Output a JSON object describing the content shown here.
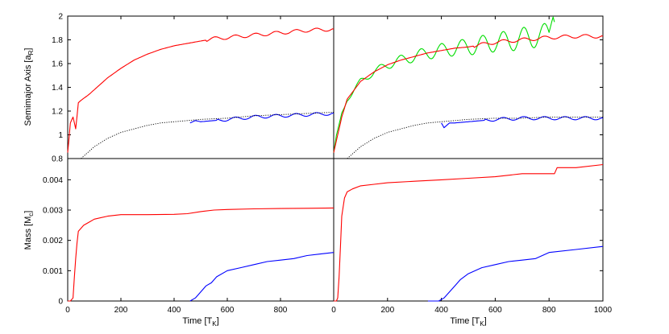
{
  "chart_data": [
    {
      "type": "line",
      "panel": "top-left",
      "xlabel": "",
      "ylabel": "Semimajor Axis [a_R]",
      "ylabel_main": "Semimajor Axis [a",
      "ylabel_sub": "R",
      "ylabel_end": "]",
      "xlim": [
        0,
        1000
      ],
      "ylim": [
        0.8,
        2.0
      ],
      "yticks": [
        "0.8",
        "1",
        "1.2",
        "1.4",
        "1.6",
        "1.8",
        "2"
      ],
      "series": [
        {
          "color": "#ff0000",
          "x": [
            0,
            10,
            20,
            30,
            40,
            50,
            80,
            100,
            150,
            200,
            250,
            300,
            350,
            400,
            450,
            500,
            550,
            600,
            700,
            800,
            900,
            1000
          ],
          "y": [
            0.85,
            1.1,
            1.15,
            1.05,
            1.27,
            1.29,
            1.34,
            1.38,
            1.48,
            1.56,
            1.63,
            1.68,
            1.72,
            1.75,
            1.77,
            1.79,
            1.81,
            1.82,
            1.84,
            1.86,
            1.88,
            1.89
          ]
        },
        {
          "color": "#0000ff",
          "x": [
            460,
            480,
            500,
            550,
            600,
            650,
            700,
            800,
            900,
            1000
          ],
          "y": [
            1.1,
            1.12,
            1.11,
            1.12,
            1.13,
            1.14,
            1.15,
            1.16,
            1.17,
            1.18
          ]
        },
        {
          "color": "#000000",
          "dash": true,
          "x": [
            50,
            100,
            150,
            200,
            250,
            300,
            350,
            400,
            450,
            500,
            600,
            700,
            800,
            900,
            1000
          ],
          "y": [
            0.8,
            0.9,
            0.97,
            1.02,
            1.05,
            1.08,
            1.1,
            1.11,
            1.12,
            1.13,
            1.14,
            1.16,
            1.17,
            1.18,
            1.19
          ]
        }
      ]
    },
    {
      "type": "line",
      "panel": "top-right",
      "xlabel": "",
      "ylabel": "",
      "xlim": [
        0,
        1000
      ],
      "ylim": [
        0.8,
        2.0
      ],
      "series": [
        {
          "color": "#00dd00",
          "x": [
            0,
            10,
            20,
            30,
            50,
            100,
            150,
            200,
            250,
            300,
            350,
            400,
            450,
            500,
            550,
            600,
            650,
            700,
            750,
            800,
            820
          ],
          "y": [
            0.85,
            1.0,
            1.1,
            1.2,
            1.3,
            1.45,
            1.53,
            1.59,
            1.63,
            1.66,
            1.69,
            1.71,
            1.73,
            1.74,
            1.76,
            1.78,
            1.79,
            1.81,
            1.83,
            1.85,
            1.95
          ]
        },
        {
          "color": "#ff0000",
          "x": [
            0,
            10,
            20,
            30,
            50,
            100,
            150,
            200,
            250,
            300,
            350,
            400,
            450,
            500,
            550,
            600,
            650,
            700,
            800,
            900,
            1000
          ],
          "y": [
            0.85,
            0.95,
            1.05,
            1.15,
            1.3,
            1.45,
            1.53,
            1.59,
            1.63,
            1.66,
            1.69,
            1.71,
            1.73,
            1.74,
            1.76,
            1.78,
            1.79,
            1.8,
            1.82,
            1.83,
            1.83
          ]
        },
        {
          "color": "#0000ff",
          "x": [
            400,
            410,
            430,
            450,
            500,
            550,
            600,
            700,
            800,
            900,
            1000
          ],
          "y": [
            1.1,
            1.06,
            1.1,
            1.1,
            1.11,
            1.12,
            1.13,
            1.14,
            1.14,
            1.14,
            1.14
          ]
        },
        {
          "color": "#000000",
          "dash": true,
          "x": [
            50,
            100,
            150,
            200,
            250,
            300,
            350,
            400,
            450,
            500,
            600,
            700,
            800,
            900,
            1000
          ],
          "y": [
            0.8,
            0.9,
            0.97,
            1.02,
            1.05,
            1.08,
            1.1,
            1.11,
            1.12,
            1.13,
            1.14,
            1.14,
            1.15,
            1.15,
            1.15
          ]
        }
      ]
    },
    {
      "type": "line",
      "panel": "bottom-left",
      "xlabel": "Time [T_K]",
      "ylabel": "Mass [M_c]",
      "ylabel_main": "Mass [M",
      "ylabel_sub": "c",
      "ylabel_end": "]",
      "xlabel_main": "Time [T",
      "xlabel_sub": "K",
      "xlabel_end": "]",
      "xlim": [
        0,
        1000
      ],
      "ylim": [
        0,
        0.0047
      ],
      "xticks": [
        "0",
        "200",
        "400",
        "600",
        "800"
      ],
      "yticks": [
        "0",
        "0.001",
        "0.002",
        "0.003",
        "0.004"
      ],
      "series": [
        {
          "color": "#ff0000",
          "x": [
            0,
            10,
            20,
            25,
            30,
            35,
            40,
            50,
            60,
            80,
            100,
            150,
            200,
            300,
            400,
            450,
            500,
            550,
            600,
            700,
            800,
            900,
            1000
          ],
          "y": [
            0,
            0,
            0.0001,
            0.0008,
            0.0014,
            0.0019,
            0.0023,
            0.0024,
            0.0025,
            0.0026,
            0.0027,
            0.0028,
            0.00285,
            0.00285,
            0.00286,
            0.00288,
            0.00295,
            0.003,
            0.00302,
            0.00304,
            0.00305,
            0.00306,
            0.00307
          ]
        },
        {
          "color": "#0000ff",
          "x": [
            460,
            480,
            500,
            520,
            540,
            560,
            600,
            650,
            700,
            750,
            800,
            850,
            900,
            950,
            1000
          ],
          "y": [
            0,
            0.0001,
            0.0003,
            0.0005,
            0.0006,
            0.0008,
            0.001,
            0.0011,
            0.0012,
            0.0013,
            0.00135,
            0.0014,
            0.0015,
            0.00155,
            0.0016
          ]
        }
      ]
    },
    {
      "type": "line",
      "panel": "bottom-right",
      "xlabel": "Time [T_K]",
      "xlabel_main": "Time [T",
      "xlabel_sub": "K",
      "xlabel_end": "]",
      "ylabel": "",
      "xlim": [
        0,
        1000
      ],
      "ylim": [
        0,
        0.0047
      ],
      "xticks": [
        "0",
        "200",
        "400",
        "600",
        "800",
        "1000"
      ],
      "series": [
        {
          "color": "#ff0000",
          "x": [
            0,
            10,
            15,
            20,
            25,
            30,
            40,
            50,
            70,
            100,
            150,
            200,
            300,
            400,
            500,
            600,
            700,
            820,
            830,
            900,
            1000
          ],
          "y": [
            0,
            0,
            0.0001,
            0.0008,
            0.0018,
            0.0028,
            0.0034,
            0.0036,
            0.0037,
            0.0038,
            0.00385,
            0.0039,
            0.00395,
            0.004,
            0.00405,
            0.0041,
            0.0042,
            0.0042,
            0.0044,
            0.0044,
            0.0045
          ]
        },
        {
          "color": "#0000ff",
          "x": [
            350,
            390,
            410,
            430,
            450,
            470,
            500,
            550,
            600,
            650,
            700,
            750,
            800,
            900,
            1000
          ],
          "y": [
            0,
            0,
            0.0001,
            0.0003,
            0.0005,
            0.0007,
            0.0009,
            0.0011,
            0.0012,
            0.0013,
            0.00135,
            0.0014,
            0.0016,
            0.0017,
            0.0018
          ]
        }
      ]
    }
  ]
}
